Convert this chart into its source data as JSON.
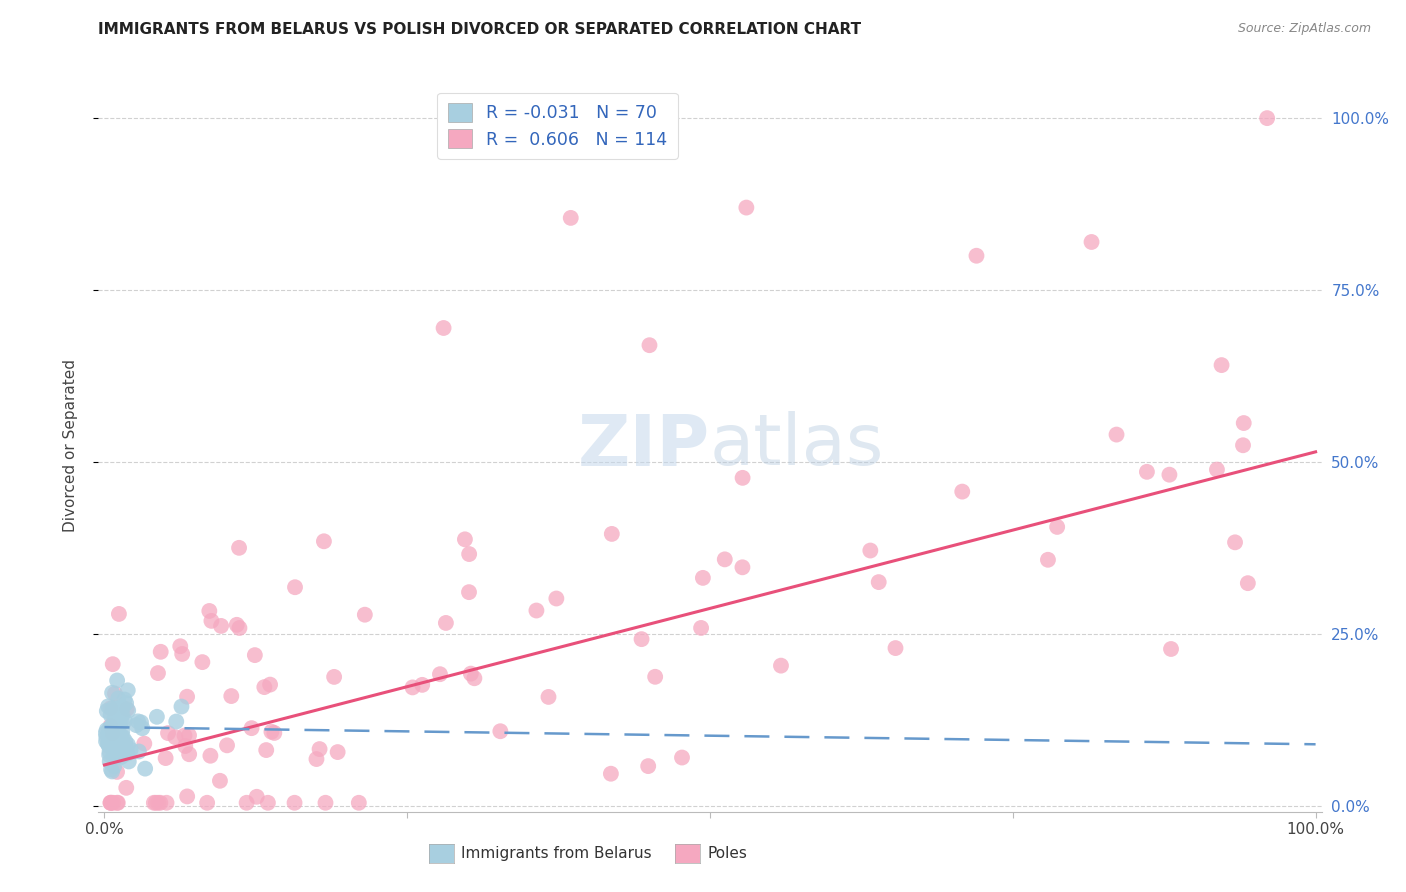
{
  "title": "IMMIGRANTS FROM BELARUS VS POLISH DIVORCED OR SEPARATED CORRELATION CHART",
  "source": "Source: ZipAtlas.com",
  "ylabel": "Divorced or Separated",
  "legend_label_blue": "Immigrants from Belarus",
  "legend_label_pink": "Poles",
  "R_blue": -0.031,
  "N_blue": 70,
  "R_pink": 0.606,
  "N_pink": 114,
  "color_blue": "#a8cfe0",
  "color_pink": "#f5a8c0",
  "color_trendline_blue": "#6699cc",
  "color_trendline_pink": "#e8507a",
  "color_watermark": "#d0dff0",
  "watermark_ZIP": "ZIP",
  "watermark_atlas": "atlas",
  "xlim": [
    0.0,
    1.0
  ],
  "ylim": [
    0.0,
    1.05
  ],
  "blue_trend_intercept": 0.115,
  "blue_trend_slope": -0.025,
  "pink_trend_intercept": 0.06,
  "pink_trend_slope": 0.455
}
